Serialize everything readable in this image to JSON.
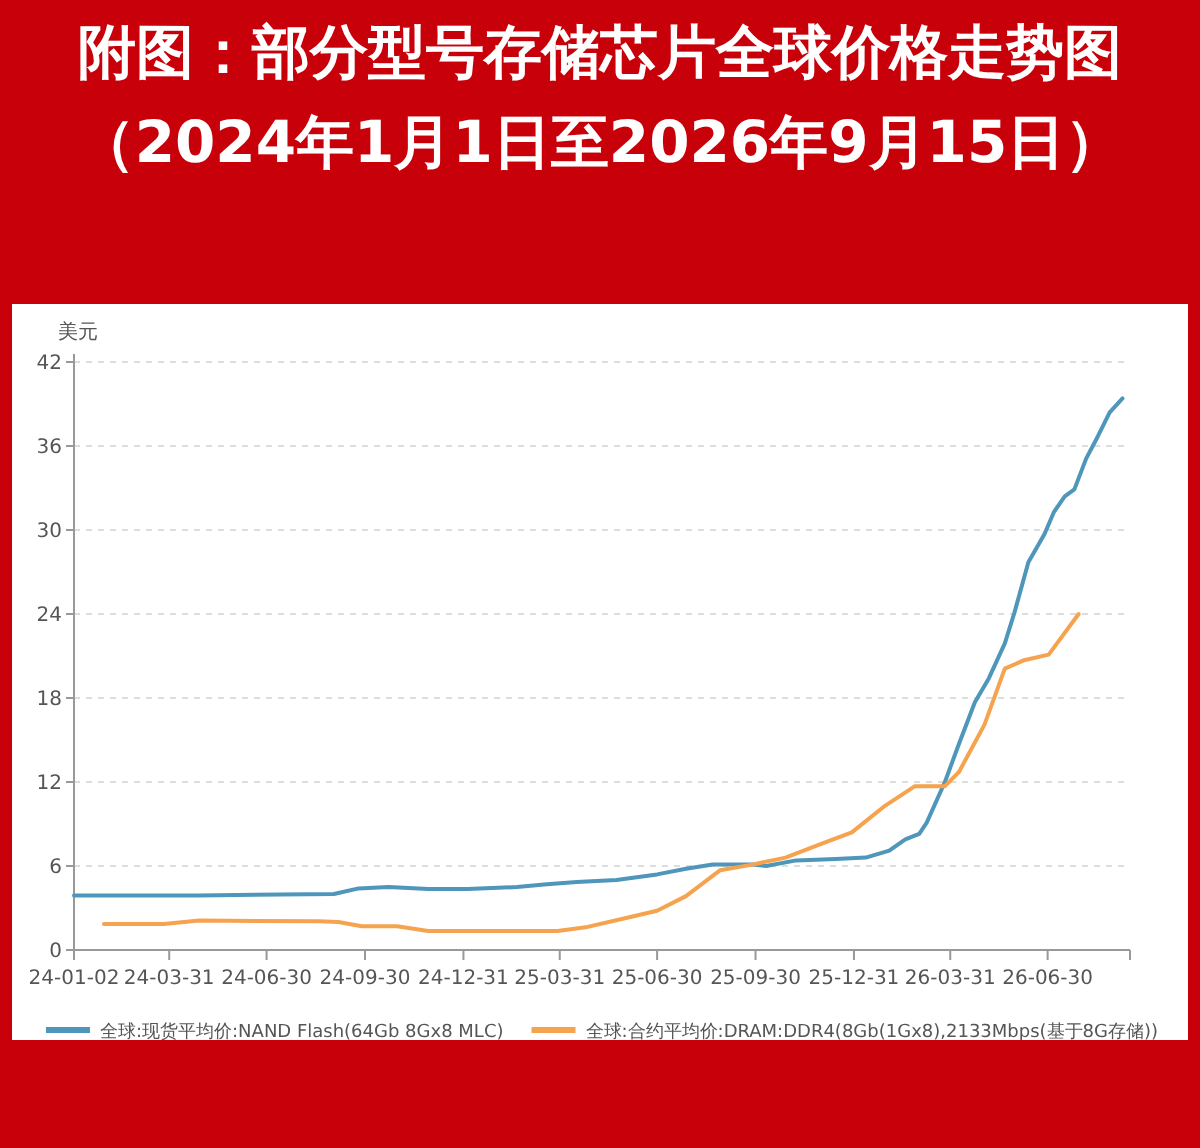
{
  "chart_data": {
    "type": "line",
    "title": "附图：部分型号存储芯片全球价格走势图（2024年1月1日至2026年9月15日）",
    "ylabel": "美元",
    "xlim": [
      "2024-01-02",
      "2026-09-15"
    ],
    "xticks": [
      {
        "value": "2024-01-02",
        "label": "24-01-02"
      },
      {
        "value": "2024-03-31",
        "label": "24-03-31"
      },
      {
        "value": "2024-06-30",
        "label": "24-06-30"
      },
      {
        "value": "2024-09-30",
        "label": "24-09-30"
      },
      {
        "value": "2024-12-31",
        "label": "24-12-31"
      },
      {
        "value": "2025-03-31",
        "label": "25-03-31"
      },
      {
        "value": "2025-06-30",
        "label": "25-06-30"
      },
      {
        "value": "2025-09-30",
        "label": "25-09-30"
      },
      {
        "value": "2025-12-31",
        "label": "25-12-31"
      },
      {
        "value": "2026-03-31",
        "label": "26-03-31"
      },
      {
        "value": "2026-06-30",
        "label": "26-06-30"
      },
      {
        "value": "2026-09-15",
        "label": null
      }
    ],
    "ylim": [
      0,
      42
    ],
    "yticks": [
      0,
      6,
      12,
      18,
      24,
      30,
      36,
      42
    ],
    "grid": "y",
    "legend": "bottom",
    "series": [
      {
        "name": "全球:现货平均价:NAND Flash(64Gb 8Gx8 MLC)",
        "color": "#4e96ba",
        "x": [
          "2024-01-02",
          "2024-04-28",
          "2024-09-01",
          "2024-09-24",
          "2024-10-22",
          "2024-11-28",
          "2025-01-04",
          "2025-02-19",
          "2025-03-19",
          "2025-04-16",
          "2025-05-23",
          "2025-06-30",
          "2025-07-27",
          "2025-08-21",
          "2025-09-27",
          "2025-10-10",
          "2025-11-07",
          "2025-12-14",
          "2026-01-11",
          "2026-02-02",
          "2026-02-17",
          "2026-03-02",
          "2026-03-09",
          "2026-03-26",
          "2026-04-08",
          "2026-04-23",
          "2026-05-06",
          "2026-05-21",
          "2026-05-30",
          "2026-06-12",
          "2026-06-27",
          "2026-07-06",
          "2026-07-16",
          "2026-07-25",
          "2026-08-05",
          "2026-08-16",
          "2026-08-27",
          "2026-09-08"
        ],
        "values": [
          3.9,
          3.9,
          4.0,
          4.4,
          4.5,
          4.35,
          4.35,
          4.5,
          4.7,
          4.85,
          5.0,
          5.4,
          5.8,
          6.1,
          6.1,
          6.0,
          6.4,
          6.5,
          6.6,
          7.1,
          7.9,
          8.3,
          9.1,
          12.0,
          14.7,
          17.7,
          19.4,
          21.9,
          24.1,
          27.7,
          29.7,
          31.3,
          32.4,
          32.9,
          35.1,
          36.7,
          38.4,
          39.4
        ]
      },
      {
        "name": "全球:合约平均价:DRAM:DDR4(8Gb(1Gx8),2133Mbps(基于8G存储))",
        "color": "#f5a34e",
        "x": [
          "2024-01-30",
          "2024-03-26",
          "2024-04-28",
          "2024-08-18",
          "2024-09-05",
          "2024-09-27",
          "2024-10-30",
          "2024-11-28",
          "2025-03-29",
          "2025-04-26",
          "2025-06-02",
          "2025-06-30",
          "2025-07-27",
          "2025-08-28",
          "2025-09-27",
          "2025-10-28",
          "2025-12-01",
          "2025-12-29",
          "2026-01-29",
          "2026-02-26",
          "2026-03-26",
          "2026-04-08",
          "2026-05-02",
          "2026-05-21",
          "2026-06-08",
          "2026-07-01",
          "2026-07-29"
        ],
        "values": [
          1.85,
          1.85,
          2.1,
          2.05,
          2.0,
          1.7,
          1.7,
          1.35,
          1.35,
          1.65,
          2.3,
          2.8,
          3.85,
          5.7,
          6.1,
          6.6,
          7.6,
          8.4,
          10.3,
          11.7,
          11.7,
          12.7,
          16.1,
          20.1,
          20.7,
          21.1,
          24.0
        ]
      }
    ]
  }
}
